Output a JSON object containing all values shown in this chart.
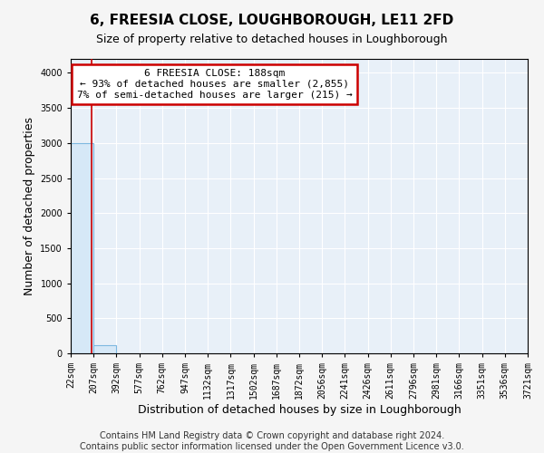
{
  "title": "6, FREESIA CLOSE, LOUGHBOROUGH, LE11 2FD",
  "subtitle": "Size of property relative to detached houses in Loughborough",
  "xlabel": "Distribution of detached houses by size in Loughborough",
  "ylabel": "Number of detached properties",
  "bin_edges": [
    22,
    207,
    392,
    577,
    762,
    947,
    1132,
    1317,
    1502,
    1687,
    1872,
    2056,
    2241,
    2426,
    2611,
    2796,
    2981,
    3166,
    3351,
    3536,
    3721
  ],
  "bar_heights": [
    3000,
    110,
    0,
    0,
    0,
    0,
    0,
    0,
    0,
    0,
    0,
    0,
    0,
    0,
    0,
    0,
    0,
    0,
    0,
    0
  ],
  "bar_color": "#d6e8f7",
  "bar_edge_color": "#7db8e0",
  "property_size": 188,
  "annotation_line1": "6 FREESIA CLOSE: 188sqm",
  "annotation_line2": "← 93% of detached houses are smaller (2,855)",
  "annotation_line3": "7% of semi-detached houses are larger (215) →",
  "annotation_box_facecolor": "#ffffff",
  "annotation_box_edgecolor": "#cc0000",
  "vline_color": "#cc0000",
  "ylim": [
    0,
    4200
  ],
  "yticks": [
    0,
    500,
    1000,
    1500,
    2000,
    2500,
    3000,
    3500,
    4000
  ],
  "background_color": "#f5f5f5",
  "plot_background_color": "#e8f0f8",
  "grid_color": "#ffffff",
  "title_fontsize": 11,
  "subtitle_fontsize": 9,
  "xlabel_fontsize": 9,
  "ylabel_fontsize": 9,
  "tick_fontsize": 7,
  "annotation_fontsize": 8,
  "footer_text": "Contains HM Land Registry data © Crown copyright and database right 2024.\nContains public sector information licensed under the Open Government Licence v3.0.",
  "footer_fontsize": 7
}
